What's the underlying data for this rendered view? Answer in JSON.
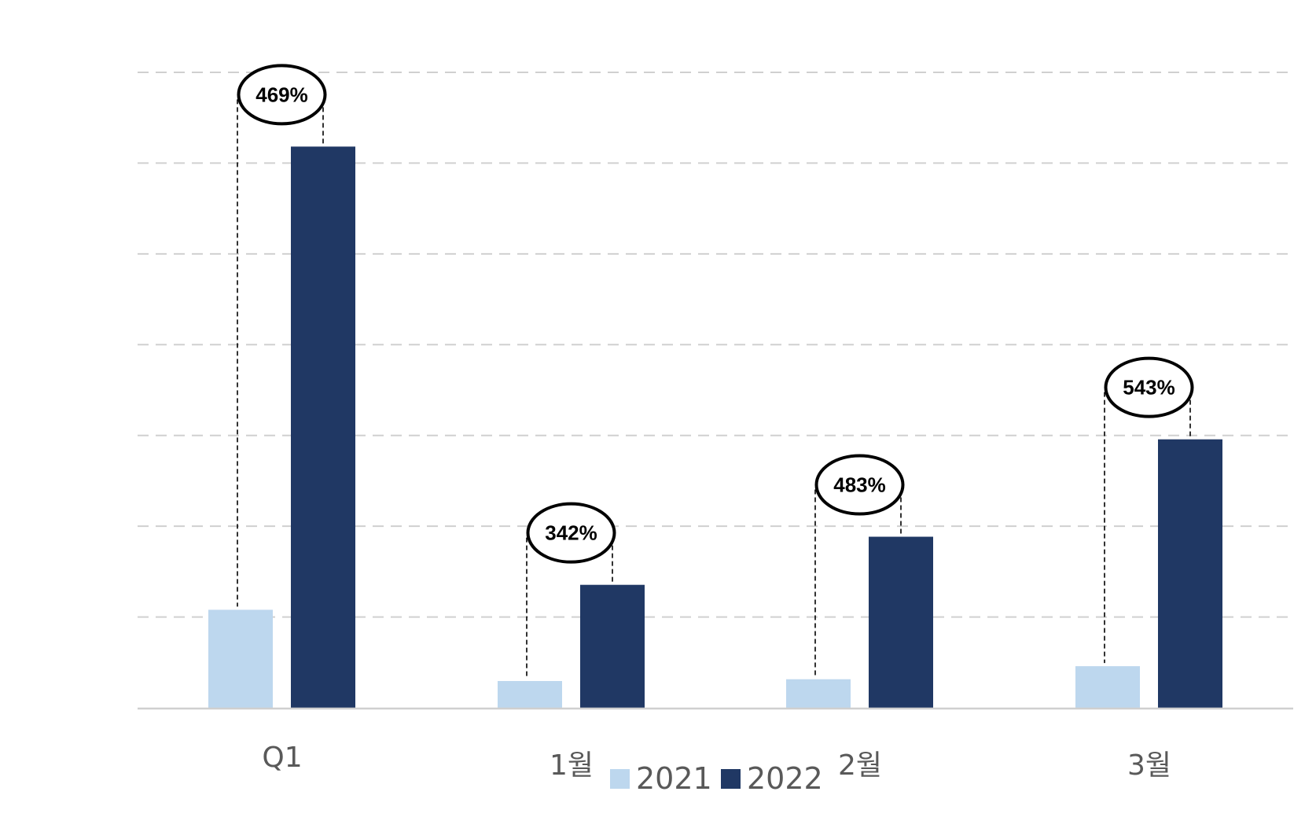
{
  "chart_data": {
    "type": "bar",
    "categories": [
      "Q1",
      "1월",
      "2월",
      "3월"
    ],
    "series": [
      {
        "name": "2021",
        "values": [
          16.5,
          4.5,
          4.8,
          7.0
        ],
        "color": "#bdd7ee"
      },
      {
        "name": "2022",
        "values": [
          94.5,
          20.7,
          28.8,
          45.2
        ],
        "color": "#203864"
      }
    ],
    "annotations": [
      "469%",
      "342%",
      "483%",
      "543%"
    ],
    "ylim": [
      0,
      107
    ],
    "gridlines": true,
    "y_tick_labels_shown": false,
    "legend": {
      "position": "bottom",
      "entries": [
        "2021",
        "2022"
      ]
    },
    "title": "",
    "xlabel": "",
    "ylabel": ""
  }
}
